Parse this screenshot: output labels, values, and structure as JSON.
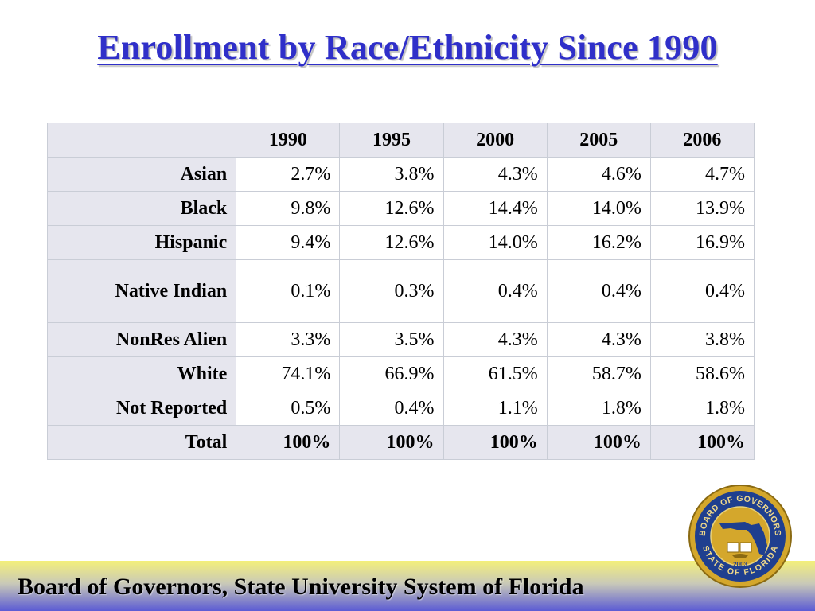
{
  "slide": {
    "title": "Enrollment by Race/Ethnicity Since 1990",
    "footer": "Board of Governors, State University System of Florida"
  },
  "table": {
    "columns": [
      "1990",
      "1995",
      "2000",
      "2005",
      "2006"
    ],
    "rows": [
      {
        "label": "Asian",
        "values": [
          "2.7%",
          "3.8%",
          "4.3%",
          "4.6%",
          "4.7%"
        ]
      },
      {
        "label": "Black",
        "values": [
          "9.8%",
          "12.6%",
          "14.4%",
          "14.0%",
          "13.9%"
        ]
      },
      {
        "label": "Hispanic",
        "values": [
          "9.4%",
          "12.6%",
          "14.0%",
          "16.2%",
          "16.9%"
        ]
      },
      {
        "label": "Native Indian",
        "values": [
          "0.1%",
          "0.3%",
          "0.4%",
          "0.4%",
          "0.4%"
        ]
      },
      {
        "label": "NonRes Alien",
        "values": [
          "3.3%",
          "3.5%",
          "4.3%",
          "4.3%",
          "3.8%"
        ]
      },
      {
        "label": "White",
        "values": [
          "74.1%",
          "66.9%",
          "61.5%",
          "58.7%",
          "58.6%"
        ]
      },
      {
        "label": "Not Reported",
        "values": [
          "0.5%",
          "0.4%",
          "1.1%",
          "1.8%",
          "1.8%"
        ]
      },
      {
        "label": "Total",
        "values": [
          "100%",
          "100%",
          "100%",
          "100%",
          "100%"
        ]
      }
    ]
  },
  "seal": {
    "top_text": "BOARD OF GOVERNORS",
    "bottom_text": "STATE OF FLORIDA",
    "year": "2003"
  },
  "colors": {
    "title": "#2f2fc9",
    "header_fill": "#e6e6ee",
    "seal_gold": "#d4a72c",
    "seal_blue": "#1f3f8f"
  }
}
